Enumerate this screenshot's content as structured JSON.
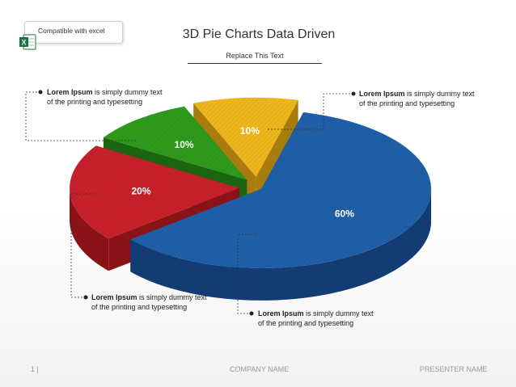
{
  "badge": {
    "text": "Compatible with excel",
    "icon": "excel-icon"
  },
  "header": {
    "title": "3D Pie Charts Data Driven",
    "subtitle": "Replace This Text"
  },
  "callouts": [
    {
      "bold": "Lorem Ipsum",
      "rest": " is simply dummy text",
      "line2": "of the printing and typesetting"
    },
    {
      "bold": "Lorem Ipsum",
      "rest": " is simply dummy text",
      "line2": "of the printing and typesetting"
    },
    {
      "bold": "Lorem Ipsum",
      "rest": " is simply dummy text",
      "line2": "of the printing and typesetting"
    },
    {
      "bold": "Lorem Ipsum",
      "rest": " is simply dummy text",
      "line2": "of the printing and typesetting"
    }
  ],
  "footer": {
    "page": "1 |",
    "company": "COMPANY NAME",
    "presenter": "PRESENTER NAME"
  },
  "chart_data": {
    "type": "pie",
    "style": "3d-exploded",
    "values": [
      60,
      20,
      10,
      10
    ],
    "labels": [
      "60%",
      "20%",
      "10%",
      "10%"
    ],
    "colors": [
      "#1f5fa8",
      "#c8202a",
      "#2e9a1c",
      "#efb61c"
    ],
    "side_colors": [
      "#123c73",
      "#8a1318",
      "#1c6510",
      "#a97c0e"
    ]
  }
}
